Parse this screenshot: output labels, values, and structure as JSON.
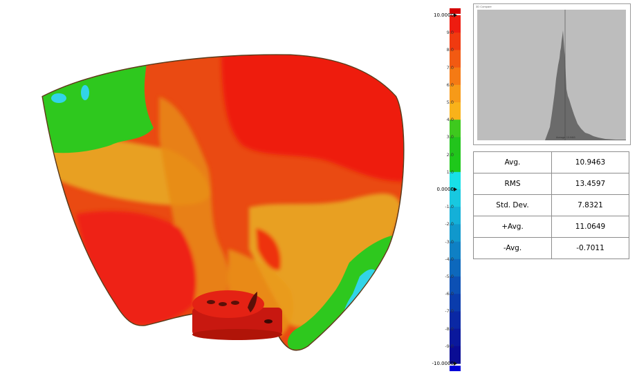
{
  "colorbar": {
    "max_label": "10.0000",
    "zero_label": "0.0000",
    "min_label": "-10.0000",
    "tick_labels": [
      "9.0",
      "8.0",
      "7.0",
      "6.0",
      "5.0",
      "4.0",
      "3.0",
      "2.0",
      "1.0",
      "0",
      "-1.0",
      "-2.0",
      "-3.0",
      "-4.0",
      "-5.0",
      "-6.0",
      "-7.0",
      "-8.0",
      "-9.0"
    ],
    "segment_colors": [
      "#ee1c10",
      "#f03a10",
      "#f25a12",
      "#f57a14",
      "#f79a18",
      "#f9b21a",
      "#3ec91e",
      "#22c41c",
      "#1ec81a",
      "#18e0e8",
      "#18c8e0",
      "#14b0d8",
      "#1098cc",
      "#0f80c4",
      "#0d68bc",
      "#0c50b4",
      "#0a3cac",
      "#0a28a4",
      "#0a189c",
      "#0a0c94"
    ],
    "top_end_color": "#d40000",
    "bottom_end_color": "#0000d8"
  },
  "histogram": {
    "title": "3D Compare",
    "avg_caption": "Average: 10.9463"
  },
  "stats": [
    {
      "label": "Avg.",
      "value": "10.9463"
    },
    {
      "label": "RMS",
      "value": "13.4597"
    },
    {
      "label": "Std. Dev.",
      "value": "7.8321"
    },
    {
      "label": "+Avg.",
      "value": "11.0649"
    },
    {
      "label": "-Avg.",
      "value": "-0.7011"
    }
  ],
  "colors": {
    "deviation_red": "#e81e10",
    "deviation_orange": "#e8a020",
    "deviation_green": "#2ec81e",
    "deviation_cyan": "#32d4e8",
    "histogram_fill": "#6b6b6b",
    "histogram_bg": "#bdbdbd"
  }
}
